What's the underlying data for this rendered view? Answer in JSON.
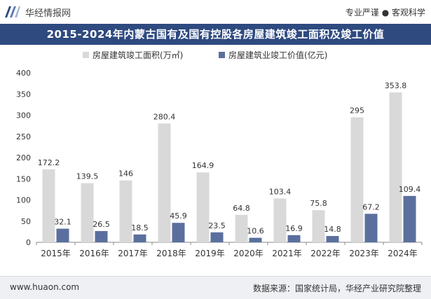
{
  "header": {
    "brand": "华经情报网",
    "tagline": "专业严谨 ● 客观科学"
  },
  "footer": {
    "url": "www.huaon.com",
    "source": "数据来源：国家统计局，华经产业研究院整理"
  },
  "colors": {
    "title_bg": "#2e4a7f",
    "series_area": "#d9d9d9",
    "series_value": "#5b6f9e"
  },
  "chart_data": {
    "type": "bar",
    "title": "2015-2024年内蒙古国有及国有控股各房屋建筑竣工面积及竣工价值",
    "categories": [
      "2015年",
      "2016年",
      "2017年",
      "2018年",
      "2019年",
      "2020年",
      "2021年",
      "2022年",
      "2023年",
      "2024年"
    ],
    "series": [
      {
        "name": "房屋建筑竣工面积(万㎡)",
        "values": [
          172.2,
          139.5,
          146,
          280.4,
          164.9,
          64.8,
          103.4,
          75.8,
          295,
          353.8
        ]
      },
      {
        "name": "房屋建筑业竣工价值(亿元)",
        "values": [
          32.1,
          26.5,
          18.5,
          45.9,
          23.5,
          10.6,
          16.9,
          14.8,
          67.2,
          109.4
        ]
      }
    ],
    "ylim": [
      0,
      400
    ],
    "yticks": [
      0,
      50,
      100,
      150,
      200,
      250,
      300,
      350,
      400
    ],
    "grid": false,
    "legend": "top-center"
  }
}
